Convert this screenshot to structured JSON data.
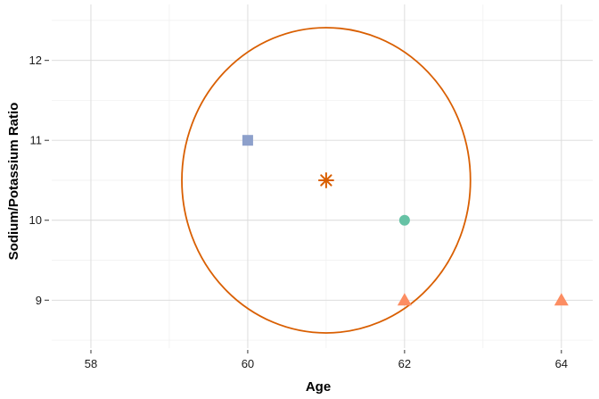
{
  "chart_data": {
    "type": "scatter",
    "title": "",
    "xlabel": "Age",
    "ylabel": "Sodium/Potassium Ratio",
    "xlim": [
      57.5,
      64.4
    ],
    "ylim": [
      8.4,
      12.7
    ],
    "x_ticks": [
      58,
      60,
      62,
      64
    ],
    "y_ticks": [
      9,
      10,
      11,
      12
    ],
    "grid": true,
    "legend": "none",
    "points": [
      {
        "x": 60,
        "y": 11,
        "shape": "square",
        "color": "#8DA0CB"
      },
      {
        "x": 62,
        "y": 10,
        "shape": "circle",
        "color": "#66C2A5"
      },
      {
        "x": 62,
        "y": 9,
        "shape": "triangle",
        "color": "#FC8D62"
      },
      {
        "x": 64,
        "y": 9,
        "shape": "triangle",
        "color": "#FC8D62"
      }
    ],
    "center": {
      "x": 61,
      "y": 10.5,
      "shape": "asterisk",
      "color": "#D95F02"
    },
    "circle": {
      "cx": 61,
      "cy": 10.5,
      "rx": 1.84,
      "ry": 1.91,
      "color": "#D95F02"
    }
  }
}
